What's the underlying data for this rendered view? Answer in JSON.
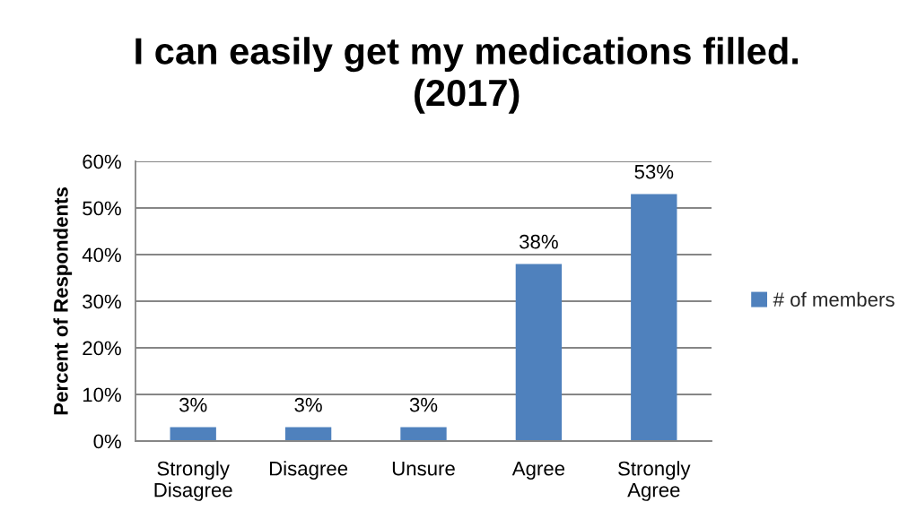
{
  "chart_data": {
    "type": "bar",
    "title": "I can easily get my medications filled.\n(2017)",
    "ylabel": "Percent of Respondents",
    "categories": [
      "Strongly\nDisagree",
      "Disagree",
      "Unsure",
      "Agree",
      "Strongly\nAgree"
    ],
    "series": [
      {
        "name": "# of members",
        "color": "#4f81bd",
        "values": [
          3,
          3,
          3,
          38,
          53
        ],
        "value_labels": [
          "3%",
          "3%",
          "3%",
          "38%",
          "53%"
        ]
      }
    ],
    "ylim": [
      0,
      60
    ],
    "yticks": [
      {
        "value": 0,
        "label": "0%"
      },
      {
        "value": 10,
        "label": "10%"
      },
      {
        "value": 20,
        "label": "20%"
      },
      {
        "value": 30,
        "label": "30%"
      },
      {
        "value": 40,
        "label": "40%"
      },
      {
        "value": 50,
        "label": "50%"
      },
      {
        "value": 60,
        "label": "60%"
      }
    ],
    "grid": "y",
    "legend": "right"
  }
}
